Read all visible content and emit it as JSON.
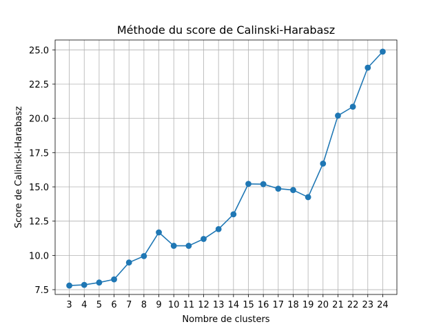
{
  "chart_data": {
    "type": "line",
    "title": "Méthode du score de Calinski-Harabasz",
    "xlabel": "Nombre de clusters",
    "ylabel": "Score de Calinski-Harabasz",
    "x": [
      3,
      4,
      5,
      6,
      7,
      8,
      9,
      10,
      11,
      12,
      13,
      14,
      15,
      16,
      17,
      18,
      19,
      20,
      21,
      22,
      23,
      24
    ],
    "series": [
      {
        "values": [
          7.8,
          7.85,
          8.02,
          8.25,
          9.48,
          9.95,
          11.68,
          10.7,
          10.7,
          11.2,
          11.92,
          13.0,
          15.22,
          15.2,
          14.87,
          14.77,
          14.25,
          16.7,
          20.2,
          20.85,
          23.7,
          24.87
        ],
        "color": "#1f77b4",
        "marker": "circle"
      }
    ],
    "xticks": [
      "3",
      "4",
      "5",
      "6",
      "7",
      "8",
      "9",
      "10",
      "11",
      "12",
      "13",
      "14",
      "15",
      "16",
      "17",
      "18",
      "19",
      "20",
      "21",
      "22",
      "23",
      "24"
    ],
    "yticks": [
      "7.5",
      "10.0",
      "12.5",
      "15.0",
      "17.5",
      "20.0",
      "22.5",
      "25.0"
    ],
    "ytick_values": [
      7.5,
      10.0,
      12.5,
      15.0,
      17.5,
      20.0,
      22.5,
      25.0
    ],
    "xlim": [
      2.05,
      24.95
    ],
    "ylim": [
      7.15,
      25.72
    ],
    "grid": true
  }
}
